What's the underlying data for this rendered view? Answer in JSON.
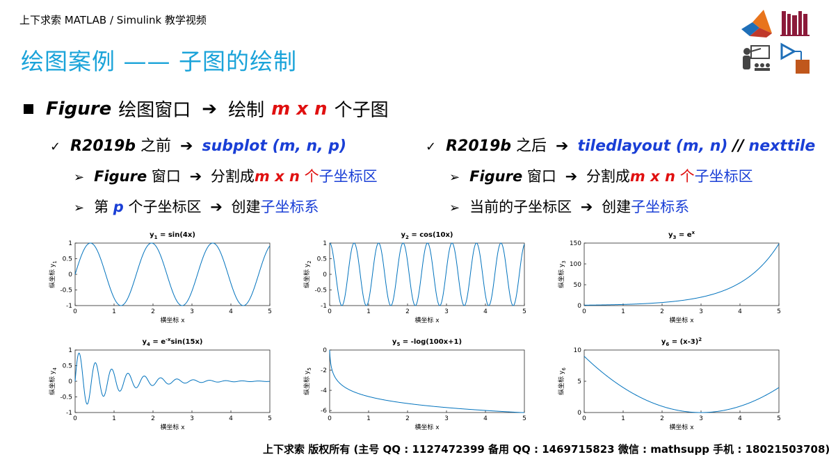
{
  "header": {
    "course_title": "上下求索 MATLAB / Simulink 教学视频",
    "slide_title": "绘图案例 —— 子图的绘制"
  },
  "logos": [
    "matlab-logo-icon",
    "books-icon",
    "teacher-icon",
    "simulink-block-icon"
  ],
  "bullets": {
    "main": {
      "prefix": "Figure",
      "text1": "绘图窗口",
      "arrow": "➔",
      "text2": "绘制",
      "mxn": "m x n",
      "text3": "个子图"
    },
    "left": {
      "head_version": "R2019b",
      "head_text": "之前",
      "head_arrow": "➔",
      "head_func": "subplot (m, n, p)",
      "item1_fig": "Figure",
      "item1_text": "窗口",
      "item1_arrow": "➔",
      "item1_text2": "分割成",
      "item1_mxn": "m x n",
      "item1_ge": "个",
      "item1_blue": "子坐标区",
      "item2_prefix": "第",
      "item2_p": "p",
      "item2_text": "个子坐标区",
      "item2_arrow": "➔",
      "item2_text2": "创建",
      "item2_blue": "子坐标系"
    },
    "right": {
      "head_version": "R2019b",
      "head_text": "之后",
      "head_arrow": "➔",
      "head_func": "tiledlayout (m, n)",
      "head_sep": "//",
      "head_func2": "nexttile",
      "item1_fig": "Figure",
      "item1_text": "窗口",
      "item1_arrow": "➔",
      "item1_text2": "分割成",
      "item1_mxn": "m x n",
      "item1_ge": "个",
      "item1_blue": "子坐标区",
      "item2_text": "当前的子坐标区",
      "item2_arrow": "➔",
      "item2_text2": "创建",
      "item2_blue": "子坐标系"
    },
    "check_mark": "✓",
    "sub_mark": "➢"
  },
  "chart_data": [
    {
      "type": "line",
      "title": "y1 = sin(4x)",
      "title_base": "y",
      "title_sub": "1",
      "title_rest": " = sin(4x)",
      "title_sup": "",
      "xlabel": "横坐标 x",
      "ylabel": "纵坐标 y",
      "ylabel_sub": "1",
      "xlim": [
        0,
        5
      ],
      "ylim": [
        -1,
        1
      ],
      "xticks": [
        "0",
        "1",
        "2",
        "3",
        "4",
        "5"
      ],
      "yticks": [
        "-1",
        "-0.5",
        "0",
        "0.5",
        "1"
      ],
      "func": "sin4x",
      "color": "#0072bd"
    },
    {
      "type": "line",
      "title": "y2 = cos(10x)",
      "title_base": "y",
      "title_sub": "2",
      "title_rest": " = cos(10x)",
      "title_sup": "",
      "xlabel": "横坐标 x",
      "ylabel": "纵坐标 y",
      "ylabel_sub": "2",
      "xlim": [
        0,
        5
      ],
      "ylim": [
        -1,
        1
      ],
      "xticks": [
        "0",
        "1",
        "2",
        "3",
        "4",
        "5"
      ],
      "yticks": [
        "-1",
        "-0.5",
        "0",
        "0.5",
        "1"
      ],
      "func": "cos10x",
      "color": "#0072bd"
    },
    {
      "type": "line",
      "title": "y3 = ex",
      "title_base": "y",
      "title_sub": "3",
      "title_rest": " = e",
      "title_sup": "x",
      "xlabel": "横坐标 x",
      "ylabel": "纵坐标 y",
      "ylabel_sub": "3",
      "xlim": [
        0,
        5
      ],
      "ylim": [
        0,
        150
      ],
      "xticks": [
        "0",
        "1",
        "2",
        "3",
        "4",
        "5"
      ],
      "yticks": [
        "0",
        "50",
        "100",
        "150"
      ],
      "func": "expx",
      "color": "#0072bd"
    },
    {
      "type": "line",
      "title": "y4 = e-xsin(15x)",
      "title_base": "y",
      "title_sub": "4",
      "title_rest": " = e",
      "title_sup": "-x",
      "title_tail": "sin(15x)",
      "xlabel": "横坐标 x",
      "ylabel": "纵坐标 y",
      "ylabel_sub": "4",
      "xlim": [
        0,
        5
      ],
      "ylim": [
        -1,
        1
      ],
      "xticks": [
        "0",
        "1",
        "2",
        "3",
        "4",
        "5"
      ],
      "yticks": [
        "-1",
        "-0.5",
        "0",
        "0.5",
        "1"
      ],
      "func": "dampsin",
      "color": "#0072bd"
    },
    {
      "type": "line",
      "title": "y5 = -log(100x+1)",
      "title_base": "y",
      "title_sub": "5",
      "title_rest": " = -log(100x+1)",
      "title_sup": "",
      "xlabel": "横坐标 x",
      "ylabel": "纵坐标 y",
      "ylabel_sub": "5",
      "xlim": [
        0,
        5
      ],
      "ylim": [
        -6.2,
        0
      ],
      "xticks": [
        "0",
        "1",
        "2",
        "3",
        "4",
        "5"
      ],
      "yticks": [
        "-6",
        "-4",
        "-2",
        "0"
      ],
      "func": "neglog",
      "color": "#0072bd"
    },
    {
      "type": "line",
      "title": "y6 = (x-3)2",
      "title_base": "y",
      "title_sub": "6",
      "title_rest": " = (x-3)",
      "title_sup": "2",
      "xlabel": "横坐标 x",
      "ylabel": "纵坐标 y",
      "ylabel_sub": "6",
      "xlim": [
        0,
        5
      ],
      "ylim": [
        0,
        10
      ],
      "xticks": [
        "0",
        "1",
        "2",
        "3",
        "4",
        "5"
      ],
      "yticks": [
        "0",
        "5",
        "10"
      ],
      "func": "sq",
      "color": "#0072bd"
    }
  ],
  "footer": "上下求索  版权所有  (主号 QQ : 1127472399   备用 QQ : 1469715823   微信 : mathsupp   手机 : 18021503708)"
}
